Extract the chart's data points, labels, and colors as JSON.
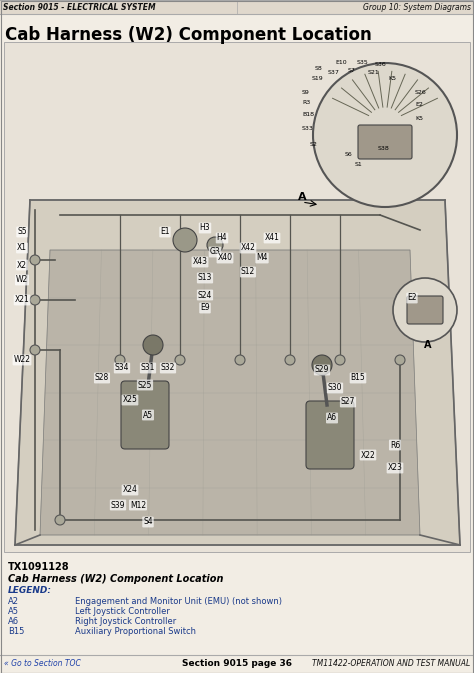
{
  "page_bg": "#f2ede4",
  "header_bg": "#e0d8cc",
  "header_text_left": "Section 9015 - ELECTRICAL SYSTEM",
  "header_text_right": "Group 10: System Diagrams",
  "title": "Cab Harness (W2) Component Location",
  "figure_label": "TX1091128",
  "caption_title": "Cab Harness (W2) Component Location",
  "legend_header": "LEGEND:",
  "legend_items": [
    [
      "A2",
      "Engagement and Monitor Unit (EMU) (not shown)"
    ],
    [
      "A5",
      "Left Joystick Controller"
    ],
    [
      "A6",
      "Right Joystick Controller"
    ],
    [
      "B15",
      "Auxiliary Proportional Switch"
    ]
  ],
  "footer_left": "« Go to Section TOC",
  "footer_center": "Section 9015 page 36",
  "footer_right": "TM11422-OPERATION AND TEST MANUAL",
  "border_color": "#aaaaaa",
  "text_dark": "#111111",
  "blue_color": "#1a3a8a",
  "header_fontsize": 5.5,
  "title_fontsize": 12,
  "body_fontsize": 6.5,
  "small_fontsize": 5.5,
  "footer_fontsize": 5.5,
  "diagram_bg": "#e8e2d8",
  "diagram_content_bg": "#ccc8bc"
}
